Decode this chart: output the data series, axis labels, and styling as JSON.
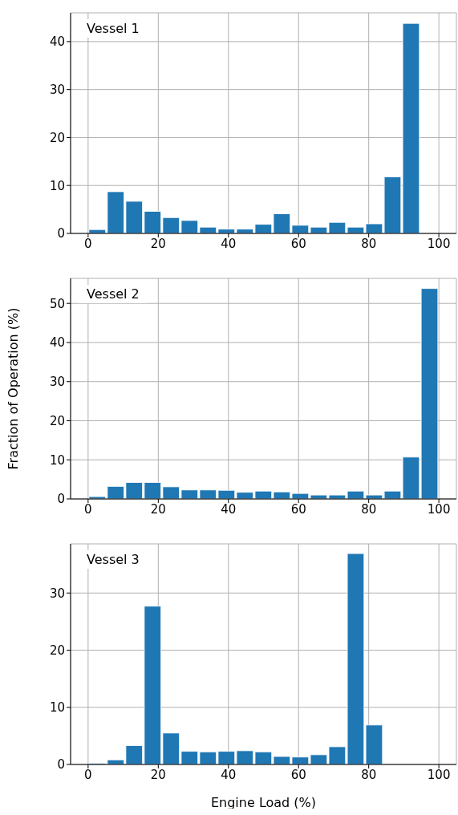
{
  "chart_data": [
    {
      "type": "histogram",
      "title": "Vessel 1",
      "color": "#1f77b4",
      "grid": true,
      "bins": [
        0,
        5.26,
        10.53,
        15.79,
        21.05,
        26.32,
        31.58,
        36.84,
        42.11,
        47.37,
        52.63,
        57.89,
        63.16,
        68.42,
        73.68,
        78.95,
        84.21,
        89.47,
        94.74,
        100
      ],
      "values": [
        0.8,
        8.7,
        6.7,
        4.6,
        3.3,
        2.7,
        1.3,
        0.9,
        0.9,
        1.9,
        4.1,
        1.7,
        1.3,
        2.3,
        1.3,
        2.0,
        11.8,
        43.8,
        0
      ],
      "xlim": [
        -5,
        105
      ],
      "xticks": [
        0,
        20,
        40,
        60,
        80,
        100
      ],
      "ylim": [
        0,
        46
      ],
      "yticks": [
        0,
        10,
        20,
        30,
        40
      ]
    },
    {
      "type": "histogram",
      "title": "Vessel 2",
      "ylabel": "Fraction of Operation (%)",
      "color": "#1f77b4",
      "grid": true,
      "bins": [
        0,
        5.26,
        10.53,
        15.79,
        21.05,
        26.32,
        31.58,
        36.84,
        42.11,
        47.37,
        52.63,
        57.89,
        63.16,
        68.42,
        73.68,
        78.95,
        84.21,
        89.47,
        94.74,
        100
      ],
      "values": [
        0.6,
        3.2,
        4.2,
        4.2,
        3.1,
        2.3,
        2.3,
        2.2,
        1.7,
        2.0,
        1.8,
        1.4,
        1.0,
        1.0,
        2.0,
        1.0,
        2.0,
        10.7,
        53.8
      ],
      "xlim": [
        -5,
        105
      ],
      "xticks": [
        0,
        20,
        40,
        60,
        80,
        100
      ],
      "ylim": [
        0,
        56.4
      ],
      "yticks": [
        0,
        10,
        20,
        30,
        40,
        50
      ]
    },
    {
      "type": "histogram",
      "title": "Vessel 3",
      "xlabel": "Engine Load (%)",
      "color": "#1f77b4",
      "grid": true,
      "bins": [
        0,
        5.26,
        10.53,
        15.79,
        21.05,
        26.32,
        31.58,
        36.84,
        42.11,
        47.37,
        52.63,
        57.89,
        63.16,
        68.42,
        73.68,
        78.95,
        84.21,
        89.47,
        94.74,
        100
      ],
      "values": [
        0.2,
        0.8,
        3.3,
        27.7,
        5.5,
        2.3,
        2.2,
        2.3,
        2.4,
        2.2,
        1.4,
        1.3,
        1.7,
        3.1,
        36.9,
        6.9,
        0,
        0,
        0
      ],
      "xlim": [
        -5,
        105
      ],
      "xticks": [
        0,
        20,
        40,
        60,
        80,
        100
      ],
      "ylim": [
        0,
        38.6
      ],
      "yticks": [
        0,
        10,
        20,
        30
      ]
    }
  ]
}
